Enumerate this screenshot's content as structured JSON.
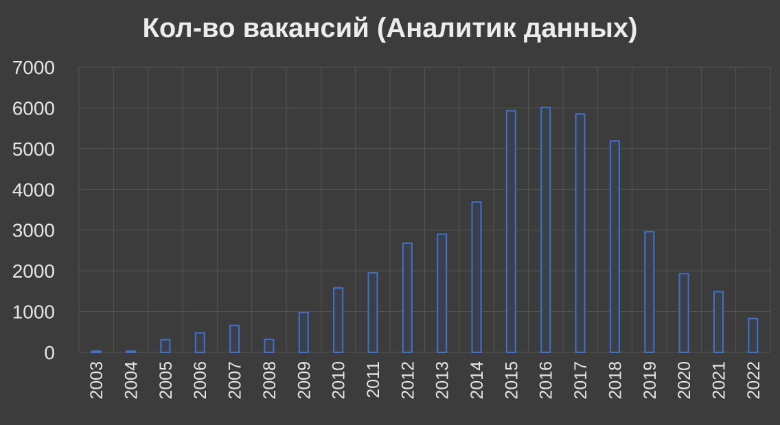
{
  "chart_data": {
    "type": "bar",
    "title": "Кол-во вакансий (Аналитик данных)",
    "xlabel": "",
    "ylabel": "",
    "ylim": [
      0,
      7000
    ],
    "yticks": [
      "0",
      "1000",
      "2000",
      "3000",
      "4000",
      "5000",
      "6000",
      "7000"
    ],
    "categories": [
      "2003",
      "2004",
      "2005",
      "2006",
      "2007",
      "2008",
      "2009",
      "2010",
      "2011",
      "2012",
      "2013",
      "2014",
      "2015",
      "2016",
      "2017",
      "2018",
      "2019",
      "2020",
      "2021",
      "2022"
    ],
    "values": [
      30,
      30,
      310,
      480,
      660,
      320,
      980,
      1580,
      1950,
      2680,
      2900,
      3690,
      5930,
      6010,
      5850,
      5190,
      2960,
      1930,
      1490,
      830
    ],
    "grid": true,
    "legend": "none",
    "colors": {
      "background": "#3c3c3c",
      "bar_outline": "#4472c4",
      "grid": "#555555",
      "text": "#e6e6e6"
    }
  }
}
